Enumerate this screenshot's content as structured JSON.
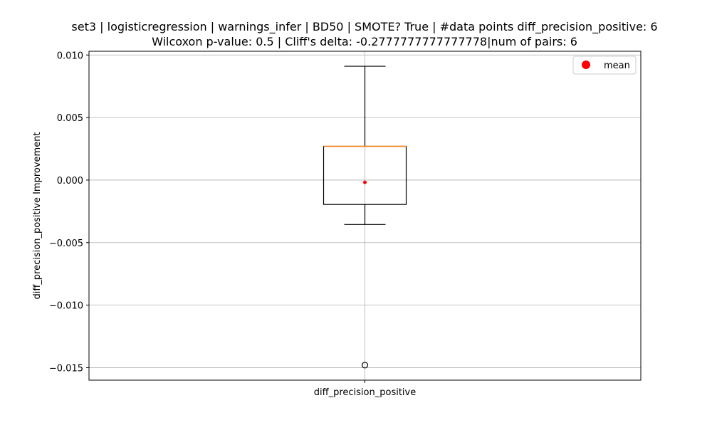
{
  "chart_data": {
    "type": "boxplot",
    "title_line1": "set3 | logisticregression | warnings_infer | BD50 | SMOTE? True | #data points diff_precision_positive: 6",
    "title_line2": "Wilcoxon p-value: 0.5 | Cliff's delta: -0.2777777777777778|num of pairs: 6",
    "xlabel": "",
    "ylabel": "diff_precision_positive Improvement",
    "categories": [
      "diff_precision_positive"
    ],
    "box": {
      "q1": -0.00195,
      "median": 0.0027,
      "q3": 0.0027,
      "whisker_low": -0.00355,
      "whisker_high": 0.0091,
      "mean": -0.00018,
      "outliers": [
        -0.0148
      ]
    },
    "ylim": [
      -0.016,
      0.0103
    ],
    "yticks": [
      0.01,
      0.005,
      0.0,
      -0.005,
      -0.01,
      -0.015
    ],
    "ytick_labels": [
      "0.010",
      "0.005",
      "0.000",
      "−0.005",
      "−0.010",
      "−0.015"
    ],
    "grid": true,
    "legend": {
      "position": "top-right",
      "entries": [
        {
          "label": "mean",
          "marker": "circle",
          "color": "#ff0000"
        }
      ]
    },
    "colors": {
      "box": "#000000",
      "median": "#ff7f0e",
      "mean": "#ff0000",
      "grid": "#b0b0b0"
    }
  }
}
